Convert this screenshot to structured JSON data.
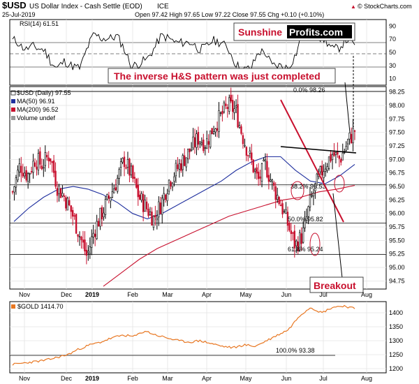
{
  "header": {
    "symbol": "$USD",
    "name": "US Dollar Index - Cash Settle (EOD)",
    "exchange": "ICE",
    "date": "25-Jul-2019",
    "ohlc": "Open 97.42  High 97.65  Low 97.22  Close 97.55  Chg +0.10 (+0.10%)",
    "credit": "© StockCharts.com",
    "credit_arrow": "▲"
  },
  "rsi": {
    "label": "RSI(14) 61.51",
    "ticks": [
      "90",
      "70",
      "50",
      "30",
      "10"
    ]
  },
  "price_panel": {
    "legend": [
      "$USD (Daily) 97.55",
      "MA(50) 96.91",
      "MA(200) 96.52",
      "Volume undef"
    ],
    "ticks": [
      "98.25",
      "98.00",
      "97.75",
      "97.50",
      "97.25",
      "97.00",
      "96.75",
      "96.50",
      "96.25",
      "96.00",
      "95.75",
      "95.50",
      "95.25",
      "95.00",
      "94.75"
    ],
    "fib_labels": [
      "0.0% 98.26",
      "38.2% 96.53",
      "50.0% 95.82",
      "61.8% 95.24"
    ]
  },
  "gold_panel": {
    "label": "$GOLD 1414.70",
    "ticks": [
      "1400",
      "1350",
      "1300",
      "1250",
      "1200"
    ],
    "fib_label": "100.0% 93.38"
  },
  "months": [
    "Nov",
    "Dec",
    "2019",
    "Feb",
    "Mar",
    "Apr",
    "May",
    "Jun",
    "Jul",
    "Aug"
  ],
  "annotations": {
    "logo_part1": "Sunshine",
    "logo_part2": "Profits.com",
    "pattern": "The inverse H&S pattern was just completed",
    "breakout": "Breakout"
  },
  "colors": {
    "up": "#000000",
    "down": "#c8102e",
    "ma50": "#1f2f9e",
    "ma200": "#c8102e",
    "gold": "#e87722",
    "annotation": "#c8102e"
  },
  "chart_data": [
    {
      "type": "line",
      "title": "RSI(14) 61.51",
      "ylim": [
        0,
        100
      ],
      "y_ticks": [
        90,
        70,
        50,
        30,
        10
      ],
      "series": [
        {
          "name": "RSI(14)",
          "last": 61.51
        }
      ]
    },
    {
      "type": "candlestick",
      "title": "$USD US Dollar Index - Cash Settle (EOD) ICE",
      "x": [
        "Nov",
        "Dec",
        "2019",
        "Feb",
        "Mar",
        "Apr",
        "May",
        "Jun",
        "Jul",
        "Aug"
      ],
      "ylim": [
        94.6,
        98.35
      ],
      "last": {
        "open": 97.42,
        "high": 97.65,
        "low": 97.22,
        "close": 97.55,
        "chg": 0.1
      },
      "approx_closes": [
        96.4,
        96.9,
        96.7,
        97.0,
        96.9,
        97.1,
        96.5,
        96.3,
        96.0,
        95.6,
        95.2,
        95.7,
        96.0,
        96.3,
        96.6,
        97.0,
        96.7,
        96.3,
        96.1,
        95.9,
        96.2,
        96.6,
        96.8,
        97.0,
        97.2,
        97.4,
        97.3,
        97.6,
        97.8,
        98.0,
        97.9,
        97.4,
        97.0,
        96.6,
        96.9,
        96.5,
        96.2,
        95.8,
        95.4,
        95.6,
        96.2,
        96.6,
        96.9,
        97.1,
        97.0,
        97.3,
        97.55
      ],
      "series": [
        {
          "name": "MA(50)",
          "last": 96.91,
          "approx": [
            95.85,
            96.1,
            96.3,
            96.45,
            96.5,
            96.45,
            96.35,
            96.2,
            96.0,
            95.9,
            96.0,
            96.15,
            96.3,
            96.45,
            96.6,
            96.8,
            96.95,
            97.05,
            97.05,
            96.8,
            96.6,
            96.55,
            96.7,
            96.91
          ]
        },
        {
          "name": "MA(200)",
          "last": 96.52,
          "approx": [
            94.65,
            94.9,
            95.15,
            95.35,
            95.5,
            95.65,
            95.8,
            95.95,
            96.05,
            96.15,
            96.25,
            96.3,
            96.4,
            96.45,
            96.52
          ]
        }
      ],
      "fibonacci": [
        {
          "label": "0.0%",
          "value": 98.26
        },
        {
          "label": "38.2%",
          "value": 96.53
        },
        {
          "label": "50.0%",
          "value": 95.82
        },
        {
          "label": "61.8%",
          "value": 95.24
        }
      ]
    },
    {
      "type": "line",
      "title": "$GOLD 1414.70",
      "ylim": [
        1185,
        1440
      ],
      "y_ticks": [
        1400,
        1350,
        1300,
        1250,
        1200
      ],
      "series": [
        {
          "name": "$GOLD",
          "last": 1414.7,
          "approx": [
            1215,
            1220,
            1225,
            1230,
            1240,
            1250,
            1270,
            1285,
            1295,
            1310,
            1320,
            1315,
            1335,
            1320,
            1310,
            1300,
            1295,
            1300,
            1290,
            1280,
            1275,
            1285,
            1280,
            1300,
            1320,
            1340,
            1390,
            1420,
            1400,
            1420,
            1425,
            1414.7
          ]
        }
      ],
      "reference": {
        "label": "100.0%",
        "value": 93.38
      }
    }
  ]
}
